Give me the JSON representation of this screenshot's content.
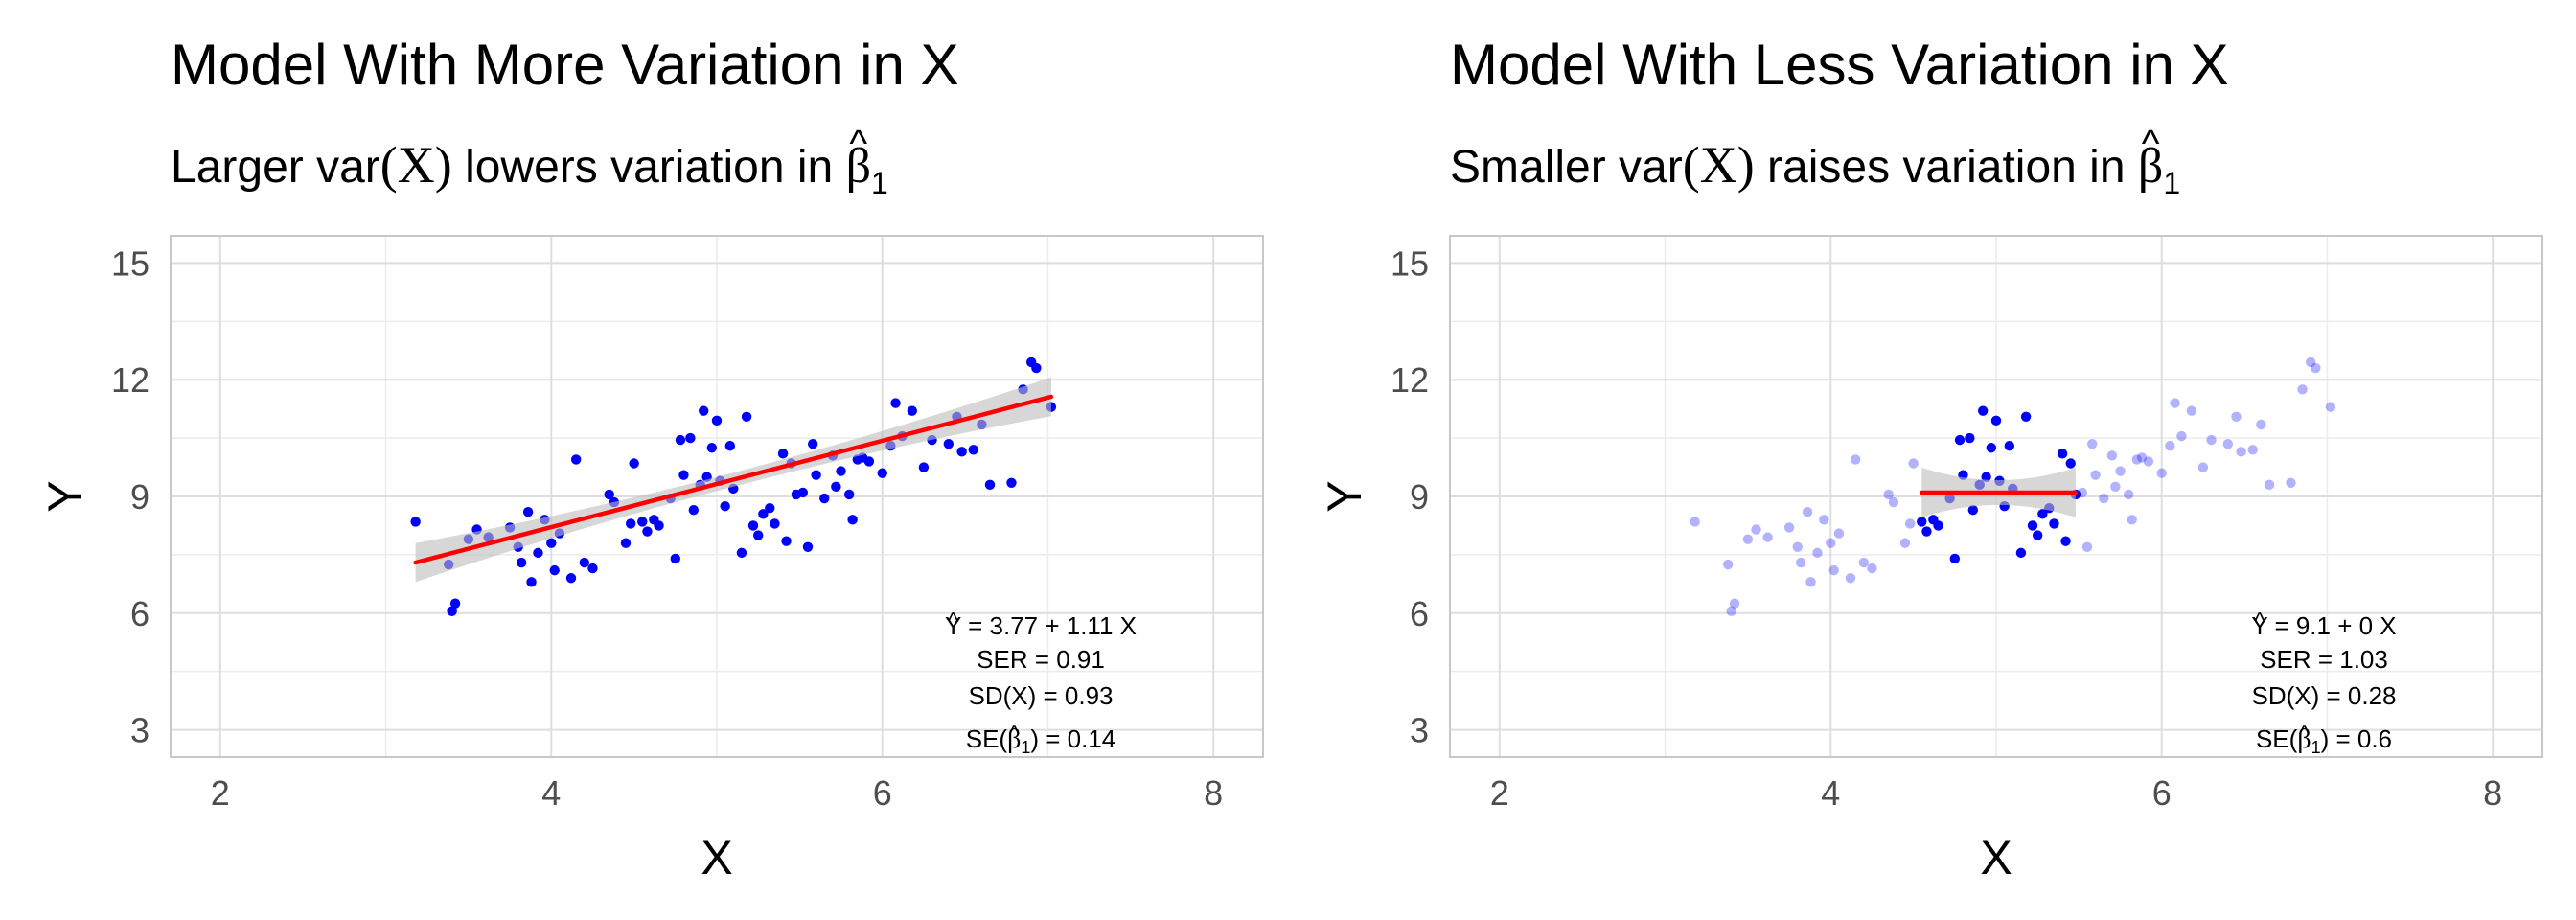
{
  "colors": {
    "points": "#0000ff",
    "line": "#ff0000",
    "band": "#bdbdbd",
    "grid": "#dedede"
  },
  "chart_data": [
    {
      "type": "scatter",
      "title": "Model With More Variation in X",
      "subtitle_prefix": "Larger var",
      "subtitle_arg": "(X)",
      "subtitle_mid": " lowers variation in ",
      "subtitle_beta": "β",
      "subtitle_hat": "^",
      "subtitle_sub": "1",
      "xlabel": "X",
      "ylabel": "Y",
      "xlim": [
        1.7,
        8.3
      ],
      "ylim": [
        2.3,
        15.7
      ],
      "xticks": [
        2,
        4,
        6,
        8
      ],
      "yticks": [
        3,
        6,
        9,
        12,
        15
      ],
      "xtick_labels": [
        "2",
        "4",
        "6",
        "8"
      ],
      "ytick_labels": [
        "3",
        "6",
        "9",
        "12",
        "15"
      ],
      "grid": true,
      "fit": {
        "intercept": 3.77,
        "slope": 1.11,
        "x_range": [
          3.18,
          7.02
        ],
        "band": true
      },
      "annotation": {
        "line1_lhs": "Y",
        "line1_rhs": " = 3.77 + 1.11 X",
        "line2": "SER = 0.91",
        "line3": "SD(X) = 0.93",
        "line4_a": "SE(",
        "line4_b": "β",
        "line4_sub": "1",
        "line4_c": ") = 0.14",
        "hat": "^"
      },
      "points": [
        {
          "x": 3.18,
          "y": 8.35
        },
        {
          "x": 3.38,
          "y": 7.25
        },
        {
          "x": 3.4,
          "y": 6.05
        },
        {
          "x": 3.42,
          "y": 6.25
        },
        {
          "x": 3.5,
          "y": 7.9
        },
        {
          "x": 3.55,
          "y": 8.15
        },
        {
          "x": 3.62,
          "y": 7.95
        },
        {
          "x": 3.75,
          "y": 8.2
        },
        {
          "x": 3.8,
          "y": 7.7
        },
        {
          "x": 3.82,
          "y": 7.3
        },
        {
          "x": 3.86,
          "y": 8.6
        },
        {
          "x": 3.88,
          "y": 6.8
        },
        {
          "x": 3.92,
          "y": 7.55
        },
        {
          "x": 3.96,
          "y": 8.4
        },
        {
          "x": 4.0,
          "y": 7.8
        },
        {
          "x": 4.02,
          "y": 7.1
        },
        {
          "x": 4.05,
          "y": 8.05
        },
        {
          "x": 4.12,
          "y": 6.9
        },
        {
          "x": 4.15,
          "y": 9.95
        },
        {
          "x": 4.2,
          "y": 7.3
        },
        {
          "x": 4.25,
          "y": 7.15
        },
        {
          "x": 4.35,
          "y": 9.05
        },
        {
          "x": 4.38,
          "y": 8.85
        },
        {
          "x": 4.45,
          "y": 7.8
        },
        {
          "x": 4.48,
          "y": 8.3
        },
        {
          "x": 4.5,
          "y": 9.85
        },
        {
          "x": 4.55,
          "y": 8.35
        },
        {
          "x": 4.58,
          "y": 8.1
        },
        {
          "x": 4.62,
          "y": 8.4
        },
        {
          "x": 4.65,
          "y": 8.25
        },
        {
          "x": 4.72,
          "y": 8.95
        },
        {
          "x": 4.75,
          "y": 7.4
        },
        {
          "x": 4.78,
          "y": 10.45
        },
        {
          "x": 4.8,
          "y": 9.55
        },
        {
          "x": 4.84,
          "y": 10.5
        },
        {
          "x": 4.86,
          "y": 8.65
        },
        {
          "x": 4.9,
          "y": 9.3
        },
        {
          "x": 4.92,
          "y": 11.2
        },
        {
          "x": 4.94,
          "y": 9.5
        },
        {
          "x": 4.97,
          "y": 10.25
        },
        {
          "x": 5.0,
          "y": 10.95
        },
        {
          "x": 5.02,
          "y": 9.4
        },
        {
          "x": 5.05,
          "y": 8.75
        },
        {
          "x": 5.08,
          "y": 10.3
        },
        {
          "x": 5.1,
          "y": 9.2
        },
        {
          "x": 5.15,
          "y": 7.55
        },
        {
          "x": 5.18,
          "y": 11.05
        },
        {
          "x": 5.22,
          "y": 8.25
        },
        {
          "x": 5.25,
          "y": 8.0
        },
        {
          "x": 5.28,
          "y": 8.55
        },
        {
          "x": 5.32,
          "y": 8.7
        },
        {
          "x": 5.35,
          "y": 8.3
        },
        {
          "x": 5.4,
          "y": 10.1
        },
        {
          "x": 5.42,
          "y": 7.85
        },
        {
          "x": 5.45,
          "y": 9.85
        },
        {
          "x": 5.48,
          "y": 9.05
        },
        {
          "x": 5.52,
          "y": 9.1
        },
        {
          "x": 5.55,
          "y": 7.7
        },
        {
          "x": 5.58,
          "y": 10.35
        },
        {
          "x": 5.6,
          "y": 9.55
        },
        {
          "x": 5.65,
          "y": 8.95
        },
        {
          "x": 5.7,
          "y": 10.05
        },
        {
          "x": 5.72,
          "y": 9.25
        },
        {
          "x": 5.75,
          "y": 9.65
        },
        {
          "x": 5.8,
          "y": 9.05
        },
        {
          "x": 5.82,
          "y": 8.4
        },
        {
          "x": 5.85,
          "y": 9.95
        },
        {
          "x": 5.88,
          "y": 10.0
        },
        {
          "x": 5.92,
          "y": 9.9
        },
        {
          "x": 6.0,
          "y": 9.6
        },
        {
          "x": 6.05,
          "y": 10.3
        },
        {
          "x": 6.08,
          "y": 11.4
        },
        {
          "x": 6.12,
          "y": 10.55
        },
        {
          "x": 6.18,
          "y": 11.2
        },
        {
          "x": 6.25,
          "y": 9.75
        },
        {
          "x": 6.3,
          "y": 10.45
        },
        {
          "x": 6.4,
          "y": 10.35
        },
        {
          "x": 6.45,
          "y": 11.05
        },
        {
          "x": 6.48,
          "y": 10.15
        },
        {
          "x": 6.55,
          "y": 10.2
        },
        {
          "x": 6.6,
          "y": 10.85
        },
        {
          "x": 6.65,
          "y": 9.3
        },
        {
          "x": 6.78,
          "y": 9.35
        },
        {
          "x": 6.85,
          "y": 11.75
        },
        {
          "x": 6.9,
          "y": 12.45
        },
        {
          "x": 6.93,
          "y": 12.3
        },
        {
          "x": 7.02,
          "y": 11.3
        }
      ]
    },
    {
      "type": "scatter",
      "title": "Model With Less Variation in X",
      "subtitle_prefix": "Smaller var",
      "subtitle_arg": "(X)",
      "subtitle_mid": " raises variation in ",
      "subtitle_beta": "β",
      "subtitle_hat": "^",
      "subtitle_sub": "1",
      "xlabel": "X",
      "ylabel": "Y",
      "xlim": [
        1.7,
        8.3
      ],
      "ylim": [
        2.3,
        15.7
      ],
      "xticks": [
        2,
        4,
        6,
        8
      ],
      "yticks": [
        3,
        6,
        9,
        12,
        15
      ],
      "xtick_labels": [
        "2",
        "4",
        "6",
        "8"
      ],
      "ytick_labels": [
        "3",
        "6",
        "9",
        "12",
        "15"
      ],
      "grid": true,
      "fit": {
        "intercept": 9.1,
        "slope": 0,
        "x_range": [
          4.55,
          5.48
        ],
        "band": true
      },
      "subset_x_range": [
        4.55,
        5.48
      ],
      "annotation": {
        "line1_lhs": "Y",
        "line1_rhs": " = 9.1 + 0 X",
        "line2": "SER = 1.03",
        "line3": "SD(X) = 0.28",
        "line4_a": "SE(",
        "line4_b": "β",
        "line4_sub": "1",
        "line4_c": ") = 0.6",
        "hat": "^"
      },
      "points": "same"
    }
  ]
}
